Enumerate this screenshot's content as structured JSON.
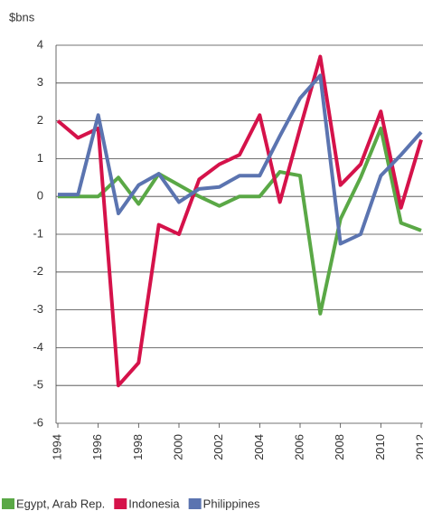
{
  "chart_data": {
    "type": "line",
    "y_label": "$bns",
    "x": [
      1994,
      1995,
      1996,
      1997,
      1998,
      1999,
      2000,
      2001,
      2002,
      2003,
      2004,
      2005,
      2006,
      2007,
      2008,
      2009,
      2010,
      2011,
      2012
    ],
    "series": [
      {
        "name": "Egypt, Arab Rep.",
        "color": "#5aa846",
        "values": [
          0,
          0,
          0,
          0.5,
          -0.2,
          0.6,
          0.3,
          0,
          -0.25,
          0,
          0,
          0.65,
          0.55,
          -3.1,
          -0.6,
          0.5,
          1.8,
          -0.7,
          -0.9
        ]
      },
      {
        "name": "Indonesia",
        "color": "#d5124a",
        "values": [
          2.0,
          1.55,
          1.8,
          -5.0,
          -4.4,
          -0.75,
          -1.0,
          0.45,
          0.85,
          1.1,
          2.15,
          -0.15,
          1.8,
          3.7,
          0.3,
          0.85,
          2.25,
          -0.3,
          1.5
        ]
      },
      {
        "name": "Philippines",
        "color": "#5b74b0",
        "values": [
          0.05,
          0.05,
          2.15,
          -0.45,
          0.3,
          0.6,
          -0.15,
          0.2,
          0.25,
          0.55,
          0.55,
          1.6,
          2.6,
          3.2,
          -1.25,
          -1.0,
          0.55,
          1.1,
          1.7
        ]
      }
    ],
    "xlim": [
      1994,
      2012
    ],
    "xticks": [
      1994,
      1996,
      1998,
      2000,
      2002,
      2004,
      2006,
      2008,
      2010,
      2012
    ],
    "ylim": [
      -6,
      4
    ],
    "yticks": [
      -6,
      -5,
      -4,
      -3,
      -2,
      -1,
      0,
      1,
      2,
      3,
      4
    ],
    "grid": true
  }
}
